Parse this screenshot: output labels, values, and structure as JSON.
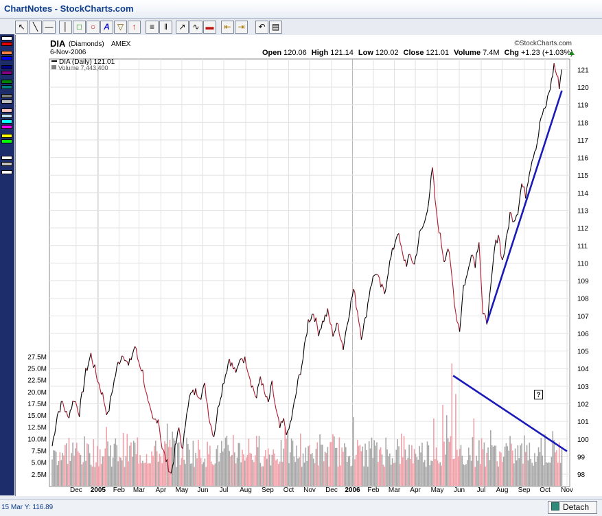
{
  "window": {
    "title": "ChartNotes - StockCharts.com"
  },
  "toolbar": {
    "icons": [
      "pointer-icon",
      "line-icon",
      "horizontal-line-icon",
      "vertical-line-icon",
      "rectangle-icon",
      "ellipse-icon",
      "text-icon",
      "callout-icon",
      "arrow-icon",
      "horizontal-grid-icon",
      "vertical-grid-icon",
      "fibonacci-icon",
      "trendline-icon",
      "color-icon",
      "move-left-icon",
      "move-right-icon",
      "undo-icon",
      "erase-icon"
    ],
    "text_tool_glyph": "A"
  },
  "palette": {
    "swatches": [
      "#ffffff",
      "#e60000",
      "#ff8040",
      "#0000ff",
      "#000080",
      "#800080",
      "#008000",
      "#008080",
      "#808080",
      "#c0c0c0",
      "#ffc0c0",
      "#c0e0ff",
      "#00ffff",
      "#ff00ff",
      "#ffff00",
      "#00ff00",
      "#ffffff",
      "#c0c0c0",
      "#ffffff"
    ]
  },
  "chart_data": {
    "type": "line",
    "header": {
      "symbol": "DIA",
      "name": "(Diamonds)",
      "exchange": "AMEX",
      "date": "6-Nov-2006",
      "open_label": "Open",
      "open": "120.06",
      "high_label": "High",
      "high": "121.14",
      "low_label": "Low",
      "low": "120.02",
      "close_label": "Close",
      "close": "121.01",
      "volume_label": "Volume",
      "volume": "7.4M",
      "chg_label": "Chg",
      "chg": "+1.23 (+1.03%)",
      "credit": "StockCharts.com"
    },
    "legend": [
      {
        "name": "DIA (Daily) 121.01",
        "color": "#000000"
      },
      {
        "name": "Volume 7,443,400",
        "color": "#808080"
      }
    ],
    "x_labels": [
      "Dec",
      "2005",
      "Feb",
      "Mar",
      "Apr",
      "May",
      "Jun",
      "Jul",
      "Aug",
      "Sep",
      "Oct",
      "Nov",
      "Dec",
      "2006",
      "Feb",
      "Mar",
      "Apr",
      "May",
      "Jun",
      "Jul",
      "Aug",
      "Sep",
      "Oct",
      "Nov"
    ],
    "y_price_ticks": [
      98,
      99,
      100,
      101,
      102,
      103,
      104,
      105,
      106,
      107,
      108,
      109,
      110,
      111,
      112,
      113,
      114,
      115,
      116,
      117,
      118,
      119,
      120,
      121
    ],
    "y_volume_ticks": [
      "2.5M",
      "5.0M",
      "7.5M",
      "10.0M",
      "12.5M",
      "15.0M",
      "17.5M",
      "20.0M",
      "22.5M",
      "25.0M",
      "27.5M"
    ],
    "price_ylim": [
      97.3,
      121.6
    ],
    "volume_ylim": [
      0,
      29000000
    ],
    "grid": true,
    "price_series": {
      "x_start": "2004-11-15",
      "x_end": "2006-11-06",
      "up_color": "#000000",
      "down_color": "#b0182c",
      "anchors": [
        [
          0,
          99.6
        ],
        [
          4,
          101.4
        ],
        [
          8,
          102.1
        ],
        [
          12,
          101.2
        ],
        [
          17,
          102.3
        ],
        [
          21,
          101.5
        ],
        [
          26,
          103.8
        ],
        [
          30,
          104.8
        ],
        [
          35,
          103.4
        ],
        [
          39,
          102.5
        ],
        [
          43,
          101.3
        ],
        [
          47,
          103.0
        ],
        [
          51,
          104.3
        ],
        [
          55,
          104.9
        ],
        [
          59,
          104.1
        ],
        [
          64,
          105.3
        ],
        [
          66,
          104.6
        ],
        [
          70,
          103.8
        ],
        [
          74,
          102.0
        ],
        [
          78,
          101.0
        ],
        [
          82,
          101.2
        ],
        [
          85,
          99.5
        ],
        [
          89,
          98.6
        ],
        [
          92,
          98.0
        ],
        [
          95,
          99.4
        ],
        [
          98,
          100.6
        ],
        [
          101,
          99.3
        ],
        [
          104,
          101.7
        ],
        [
          107,
          102.5
        ],
        [
          111,
          102.7
        ],
        [
          115,
          102.5
        ],
        [
          118,
          103.0
        ],
        [
          122,
          101.0
        ],
        [
          125,
          100.2
        ],
        [
          129,
          102.1
        ],
        [
          133,
          103.4
        ],
        [
          137,
          104.6
        ],
        [
          140,
          104.0
        ],
        [
          143,
          103.8
        ],
        [
          146,
          104.7
        ],
        [
          150,
          104.4
        ],
        [
          154,
          103.2
        ],
        [
          158,
          102.3
        ],
        [
          161,
          103.6
        ],
        [
          164,
          102.6
        ],
        [
          167,
          102.0
        ],
        [
          170,
          103.1
        ],
        [
          173,
          101.6
        ],
        [
          176,
          100.6
        ],
        [
          179,
          101.0
        ],
        [
          182,
          100.2
        ],
        [
          186,
          101.5
        ],
        [
          190,
          103.2
        ],
        [
          194,
          104.6
        ],
        [
          198,
          106.7
        ],
        [
          202,
          107.2
        ],
        [
          206,
          106.1
        ],
        [
          210,
          106.8
        ],
        [
          213,
          107.2
        ],
        [
          217,
          106.0
        ],
        [
          221,
          106.5
        ],
        [
          225,
          105.2
        ],
        [
          229,
          107.0
        ],
        [
          233,
          108.5
        ],
        [
          236,
          107.3
        ],
        [
          239,
          105.9
        ],
        [
          242,
          106.7
        ],
        [
          246,
          108.7
        ],
        [
          250,
          109.5
        ],
        [
          254,
          108.7
        ],
        [
          257,
          108.3
        ],
        [
          260,
          109.7
        ],
        [
          264,
          110.9
        ],
        [
          267,
          111.8
        ],
        [
          271,
          110.4
        ],
        [
          274,
          110.0
        ],
        [
          277,
          110.4
        ],
        [
          280,
          109.9
        ],
        [
          284,
          111.6
        ],
        [
          288,
          112.3
        ],
        [
          291,
          113.6
        ],
        [
          294,
          115.3
        ],
        [
          297,
          112.8
        ],
        [
          300,
          111.5
        ],
        [
          303,
          110.2
        ],
        [
          306,
          110.9
        ],
        [
          309,
          109.2
        ],
        [
          312,
          107.2
        ],
        [
          315,
          106.2
        ],
        [
          318,
          108.7
        ],
        [
          321,
          109.3
        ],
        [
          324,
          110.7
        ],
        [
          327,
          110.0
        ],
        [
          330,
          111.4
        ],
        [
          333,
          107.0
        ],
        [
          336,
          106.7
        ],
        [
          339,
          108.4
        ],
        [
          342,
          110.8
        ],
        [
          345,
          111.7
        ],
        [
          348,
          110.1
        ],
        [
          351,
          111.2
        ],
        [
          354,
          112.8
        ],
        [
          357,
          112.5
        ],
        [
          360,
          113.0
        ],
        [
          363,
          114.5
        ],
        [
          366,
          113.9
        ],
        [
          369,
          115.3
        ],
        [
          372,
          116.2
        ],
        [
          375,
          116.9
        ],
        [
          378,
          118.3
        ],
        [
          381,
          118.7
        ],
        [
          384,
          119.7
        ],
        [
          386,
          120.3
        ],
        [
          388,
          121.3
        ],
        [
          390,
          120.7
        ],
        [
          392,
          120.1
        ],
        [
          394,
          121.0
        ]
      ]
    },
    "volume_series": {
      "unit": "shares",
      "up_color": "#a8a8a8",
      "down_color": "#f0a0a8",
      "typical_range": [
        4000000,
        12000000
      ],
      "spikes": [
        {
          "day": 42,
          "value": 12500000
        },
        {
          "day": 89,
          "value": 13200000
        },
        {
          "day": 93,
          "value": 11500000
        },
        {
          "day": 140,
          "value": 10800000
        },
        {
          "day": 180,
          "value": 12400000
        },
        {
          "day": 233,
          "value": 14600000
        },
        {
          "day": 295,
          "value": 14300000
        },
        {
          "day": 302,
          "value": 17200000
        },
        {
          "day": 305,
          "value": 15000000
        },
        {
          "day": 309,
          "value": 26000000
        },
        {
          "day": 312,
          "value": 19500000
        },
        {
          "day": 326,
          "value": 14300000
        },
        {
          "day": 339,
          "value": 11800000
        },
        {
          "day": 365,
          "value": 10700000
        },
        {
          "day": 378,
          "value": 10200000
        }
      ]
    },
    "annotations": [
      {
        "type": "trendline",
        "color": "#1a1ab8",
        "from": {
          "day": 336,
          "price": 106.6
        },
        "to": {
          "day": 394,
          "price": 119.8
        }
      },
      {
        "type": "trendline",
        "color": "#1a1ab8",
        "from": {
          "day": 310,
          "price": 103.6
        },
        "to": {
          "day": 398,
          "price": 99.3
        }
      },
      {
        "type": "note-marker",
        "glyph": "?",
        "day": 376,
        "price": 102.5
      }
    ]
  },
  "status_bar": {
    "cursor_readout": "15 Mar  Y: 116.89",
    "detach_label": "Detach"
  }
}
